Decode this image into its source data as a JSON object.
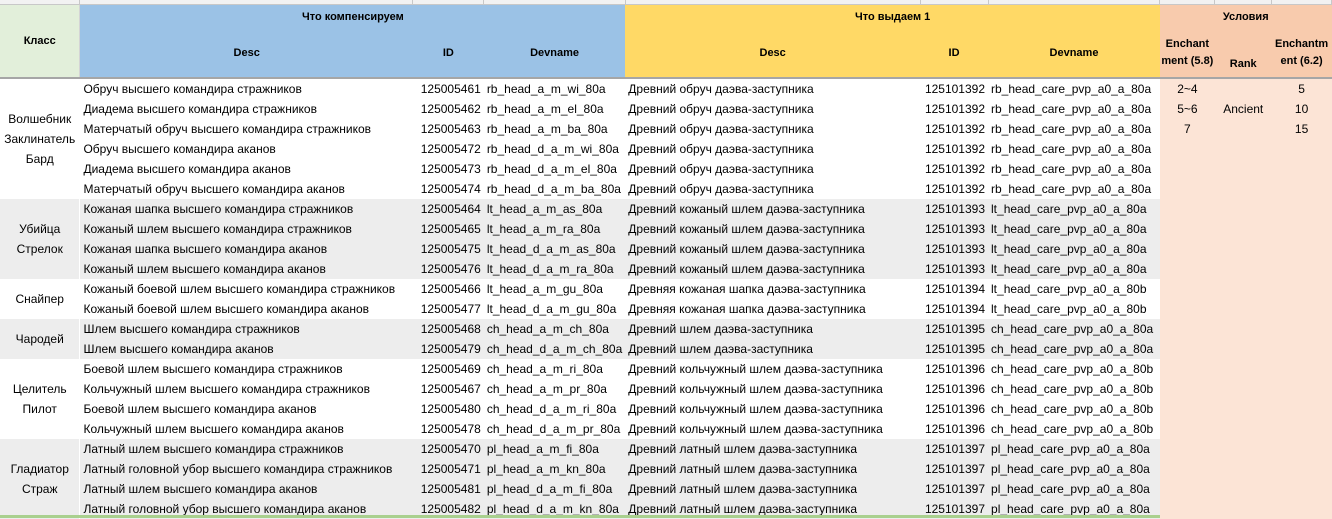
{
  "header": {
    "class_label": "Класс",
    "group_compensate": "Что компенсируем",
    "group_issue": "Что выдаем 1",
    "group_conditions": "Условия",
    "desc": "Desc",
    "id": "ID",
    "devname": "Devname",
    "desc2": "Desc",
    "id2": "ID",
    "devname2": "Devname",
    "enchant_58": "Enchantment (5.8)",
    "rank": "Rank",
    "enchant_62": "Enchantment (6.2)"
  },
  "colors": {
    "class_header": "#e2efda",
    "compensate_header": "#9bc2e6",
    "issue_header": "#ffd966",
    "conditions_header": "#f8cbad",
    "conditions_body": "#fce4d6",
    "shaded_row": "#ededed"
  },
  "groups": [
    {
      "class_lines": [
        "Волшебник",
        "Заклинатель",
        "Бард"
      ],
      "rows": [
        [
          "Обруч высшего командира стражников",
          "125005461",
          "rb_head_a_m_wi_80a",
          "Древний обруч даэва-заступника",
          "125101392",
          "rb_head_care_pvp_a0_a_80a"
        ],
        [
          "Диадема высшего командира стражников",
          "125005462",
          "rb_head_a_m_el_80a",
          "Древний обруч даэва-заступника",
          "125101392",
          "rb_head_care_pvp_a0_a_80a"
        ],
        [
          "Матерчатый обруч высшего командира стражников",
          "125005463",
          "rb_head_a_m_ba_80a",
          "Древний обруч даэва-заступника",
          "125101392",
          "rb_head_care_pvp_a0_a_80a"
        ],
        [
          "Обруч высшего командира аканов",
          "125005472",
          "rb_head_d_a_m_wi_80a",
          "Древний обруч даэва-заступника",
          "125101392",
          "rb_head_care_pvp_a0_a_80a"
        ],
        [
          "Диадема высшего командира аканов",
          "125005473",
          "rb_head_d_a_m_el_80a",
          "Древний обруч даэва-заступника",
          "125101392",
          "rb_head_care_pvp_a0_a_80a"
        ],
        [
          "Матерчатый обруч высшего командира аканов",
          "125005474",
          "rb_head_d_a_m_ba_80a",
          "Древний обруч даэва-заступника",
          "125101392",
          "rb_head_care_pvp_a0_a_80a"
        ]
      ]
    },
    {
      "class_lines": [
        "Убийца",
        "Стрелок"
      ],
      "rows": [
        [
          "Кожаная шапка высшего командира стражников",
          "125005464",
          "lt_head_a_m_as_80a",
          "Древний кожаный шлем даэва-заступника",
          "125101393",
          "lt_head_care_pvp_a0_a_80a"
        ],
        [
          "Кожаный шлем высшего командира стражников",
          "125005465",
          "lt_head_a_m_ra_80a",
          "Древний кожаный шлем даэва-заступника",
          "125101393",
          "lt_head_care_pvp_a0_a_80a"
        ],
        [
          "Кожаная шапка высшего командира аканов",
          "125005475",
          "lt_head_d_a_m_as_80a",
          "Древний кожаный шлем даэва-заступника",
          "125101393",
          "lt_head_care_pvp_a0_a_80a"
        ],
        [
          "Кожаный шлем высшего командира аканов",
          "125005476",
          "lt_head_d_a_m_ra_80a",
          "Древний кожаный шлем даэва-заступника",
          "125101393",
          "lt_head_care_pvp_a0_a_80a"
        ]
      ]
    },
    {
      "class_lines": [
        "Снайпер"
      ],
      "rows": [
        [
          "Кожаный боевой шлем высшего командира стражников",
          "125005466",
          "lt_head_a_m_gu_80a",
          "Древняя кожаная шапка даэва-заступника",
          "125101394",
          "lt_head_care_pvp_a0_a_80b"
        ],
        [
          "Кожаный боевой шлем высшего командира аканов",
          "125005477",
          "lt_head_d_a_m_gu_80a",
          "Древняя кожаная шапка даэва-заступника",
          "125101394",
          "lt_head_care_pvp_a0_a_80b"
        ]
      ]
    },
    {
      "class_lines": [
        "Чародей"
      ],
      "rows": [
        [
          "Шлем высшего командира стражников",
          "125005468",
          "ch_head_a_m_ch_80a",
          "Древний шлем даэва-заступника",
          "125101395",
          "ch_head_care_pvp_a0_a_80a"
        ],
        [
          "Шлем высшего командира аканов",
          "125005479",
          "ch_head_d_a_m_ch_80a",
          "Древний шлем даэва-заступника",
          "125101395",
          "ch_head_care_pvp_a0_a_80a"
        ]
      ]
    },
    {
      "class_lines": [
        "Целитель",
        "Пилот"
      ],
      "rows": [
        [
          "Боевой шлем высшего командира стражников",
          "125005469",
          "ch_head_a_m_ri_80a",
          "Древний кольчужный шлем даэва-заступника",
          "125101396",
          "ch_head_care_pvp_a0_a_80b"
        ],
        [
          "Кольчужный шлем высшего командира стражников",
          "125005467",
          "ch_head_a_m_pr_80a",
          "Древний кольчужный шлем даэва-заступника",
          "125101396",
          "ch_head_care_pvp_a0_a_80b"
        ],
        [
          "Боевой шлем высшего командира аканов",
          "125005480",
          "ch_head_d_a_m_ri_80a",
          "Древний кольчужный шлем даэва-заступника",
          "125101396",
          "ch_head_care_pvp_a0_a_80b"
        ],
        [
          "Кольчужный шлем высшего командира аканов",
          "125005478",
          "ch_head_d_a_m_pr_80a",
          "Древний кольчужный шлем даэва-заступника",
          "125101396",
          "ch_head_care_pvp_a0_a_80b"
        ]
      ]
    },
    {
      "class_lines": [
        "Гладиатор",
        "Страж"
      ],
      "rows": [
        [
          "Латный шлем высшего командира стражников",
          "125005470",
          "pl_head_a_m_fi_80a",
          "Древний латный шлем даэва-заступника",
          "125101397",
          "pl_head_care_pvp_a0_a_80a"
        ],
        [
          "Латный головной убор высшего командира стражников",
          "125005471",
          "pl_head_a_m_kn_80a",
          "Древний латный шлем даэва-заступника",
          "125101397",
          "pl_head_care_pvp_a0_a_80a"
        ],
        [
          "Латный шлем высшего командира аканов",
          "125005481",
          "pl_head_d_a_m_fi_80a",
          "Древний латный шлем даэва-заступника",
          "125101397",
          "pl_head_care_pvp_a0_a_80a"
        ],
        [
          "Латный головной убор высшего командира аканов",
          "125005482",
          "pl_head_d_a_m_kn_80a",
          "Древний латный шлем даэва-заступника",
          "125101397",
          "pl_head_care_pvp_a0_a_80a"
        ]
      ]
    }
  ],
  "conditions": [
    {
      "enchant_58": "2~4",
      "rank": "",
      "enchant_62": "5"
    },
    {
      "enchant_58": "5~6",
      "rank": "Ancient",
      "enchant_62": "10"
    },
    {
      "enchant_58": "7",
      "rank": "",
      "enchant_62": "15"
    }
  ]
}
